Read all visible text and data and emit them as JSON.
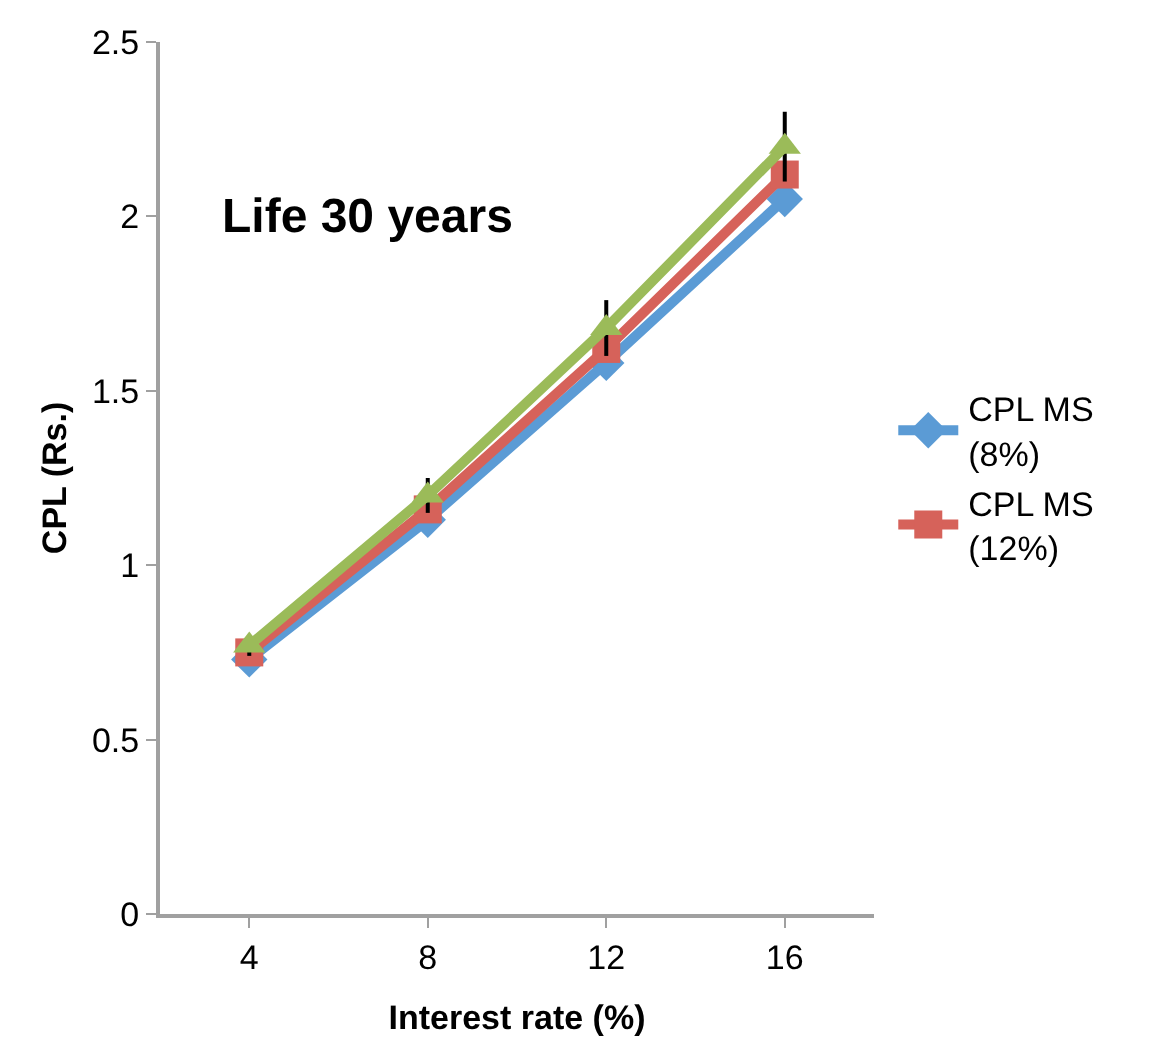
{
  "chart_data": {
    "type": "line",
    "title": "Life 30 years",
    "xlabel": "Interest rate (%)",
    "ylabel": "CPL (Rs.)",
    "categories": [
      "4",
      "8",
      "12",
      "16"
    ],
    "series": [
      {
        "name": "CPL MS (8%)",
        "color": "#5b9bd5",
        "marker": "diamond",
        "values": [
          0.73,
          1.13,
          1.58,
          2.05
        ]
      },
      {
        "name": "CPL MS (12%)",
        "color": "#d6625a",
        "marker": "square",
        "values": [
          0.75,
          1.16,
          1.62,
          2.12
        ]
      },
      {
        "color": "#9bbb59",
        "marker": "triangle",
        "values": [
          0.77,
          1.2,
          1.68,
          2.2
        ],
        "errors": [
          0.03,
          0.05,
          0.08,
          0.1
        ]
      }
    ],
    "ylim": [
      0,
      2.5
    ],
    "yticks": [
      0,
      0.5,
      1,
      1.5,
      2,
      2.5
    ],
    "legend": "right"
  }
}
